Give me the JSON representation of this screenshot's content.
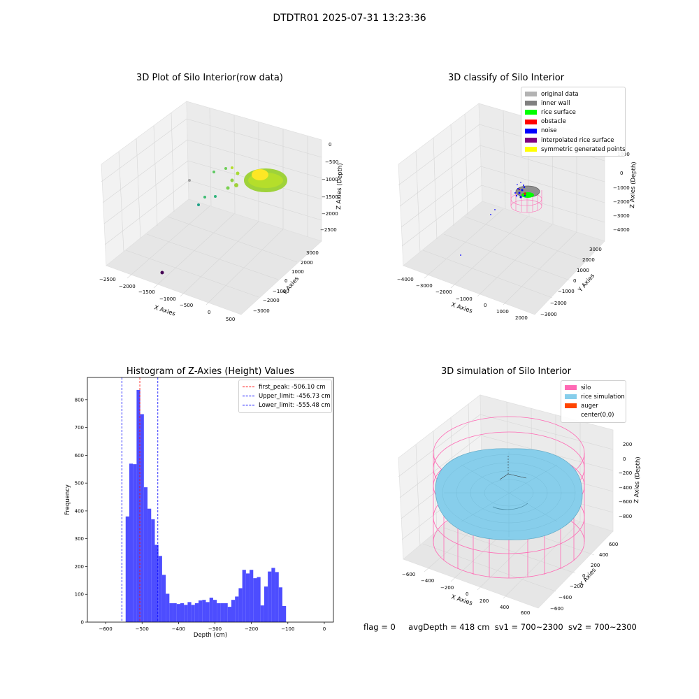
{
  "title": "DTDTR01 2025-07-31 13:23:36",
  "colors": {
    "histogram_bar": "#4d4dff",
    "first_peak_line": "#ff0000",
    "limit_line": "#0000ff",
    "pane": "#f2f2f2",
    "grid": "#d9d9d9",
    "silo": "#ff69b4",
    "rice_simulation": "#87ceeb",
    "auger": "#ff4500"
  },
  "panels": {
    "raw": {
      "title": "3D Plot of Silo Interior(row data)",
      "x_label": "X Axies",
      "y_label": "Y Axies",
      "z_label": "Z Axies (Depth)",
      "x_ticks": [
        "−2500",
        "−2000",
        "−1500",
        "−1000",
        "−500",
        "0",
        "500"
      ],
      "y_ticks": [
        "3000",
        "2000",
        "1000",
        "0",
        "−1000",
        "−2000",
        "−3000"
      ],
      "z_ticks": [
        "0",
        "−500",
        "−1000",
        "−1500",
        "−2000",
        "−2500"
      ]
    },
    "classify": {
      "title": "3D classify of Silo Interior",
      "x_label": "X Axies",
      "y_label": "Y Axies",
      "z_label": "Z Axies (Depth)",
      "x_ticks": [
        "−4000",
        "−3000",
        "−2000",
        "−1000",
        "0",
        "1000",
        "2000"
      ],
      "y_ticks": [
        "3000",
        "2000",
        "1000",
        "0",
        "−1000",
        "−2000",
        "−3000"
      ],
      "z_ticks": [
        "1000",
        "0",
        "−1000",
        "−2000",
        "−3000",
        "−4000"
      ],
      "legend": [
        {
          "label": "original data",
          "color": "#b3b3b3"
        },
        {
          "label": "inner wall",
          "color": "#808080"
        },
        {
          "label": "rice surface",
          "color": "#00ff00"
        },
        {
          "label": "obstacle",
          "color": "#ff0000"
        },
        {
          "label": "noise",
          "color": "#0000ff"
        },
        {
          "label": "interpolated rice surface",
          "color": "#800080"
        },
        {
          "label": "symmetric generated points",
          "color": "#ffff00"
        }
      ]
    },
    "simulation": {
      "title": "3D simulation of Silo Interior",
      "x_label": "X Axies",
      "y_label": "Y Axies",
      "z_label": "Z Axies (Depth)",
      "x_ticks": [
        "−600",
        "−400",
        "−200",
        "0",
        "200",
        "400",
        "600"
      ],
      "y_ticks": [
        "600",
        "400",
        "200",
        "0",
        "−200",
        "−400",
        "−600"
      ],
      "z_ticks": [
        "200",
        "0",
        "−200",
        "−400",
        "−600",
        "−800"
      ],
      "legend": [
        {
          "label": "silo",
          "color": "#ff69b4"
        },
        {
          "label": "rice simulation",
          "color": "#87ceeb"
        },
        {
          "label": "auger",
          "color": "#ff4500"
        },
        {
          "label": "center(0,0)",
          "color": ""
        }
      ]
    }
  },
  "chart_data": {
    "type": "bar",
    "title": "Histogram of Z-Axies (Height) Values",
    "xlabel": "Depth (cm)",
    "ylabel": "Frequency",
    "xlim": [
      -650,
      25
    ],
    "ylim": [
      0,
      880
    ],
    "x_ticks": [
      -600,
      -500,
      -400,
      -300,
      -200,
      -100,
      0
    ],
    "x_tick_labels": [
      "−600",
      "−500",
      "−400",
      "−300",
      "−200",
      "−100",
      "0"
    ],
    "y_ticks": [
      0,
      100,
      200,
      300,
      400,
      500,
      600,
      700,
      800
    ],
    "bin_width": 10,
    "bin_start": -545,
    "values": [
      380,
      570,
      568,
      835,
      748,
      485,
      408,
      370,
      278,
      238,
      170,
      102,
      68,
      68,
      65,
      68,
      62,
      72,
      62,
      68,
      78,
      80,
      72,
      88,
      80,
      68,
      68,
      68,
      55,
      80,
      92,
      122,
      188,
      175,
      188,
      158,
      162,
      60,
      128,
      182,
      195,
      180,
      125,
      58
    ],
    "lines": [
      {
        "label": "first_peak: -506.10 cm",
        "x": -506.1,
        "color": "#ff0000"
      },
      {
        "label": "Upper_limit: -456.73 cm",
        "x": -456.73,
        "color": "#0000ff"
      },
      {
        "label": "Lower_limit: -555.48 cm",
        "x": -555.48,
        "color": "#0000ff"
      }
    ],
    "legend_position": "upper right"
  },
  "footer": {
    "flag": "flag = 0",
    "avg_depth": "avgDepth = 418 cm",
    "sv1": "sv1 = 700~2300",
    "sv2": "sv2 = 700~2300"
  }
}
